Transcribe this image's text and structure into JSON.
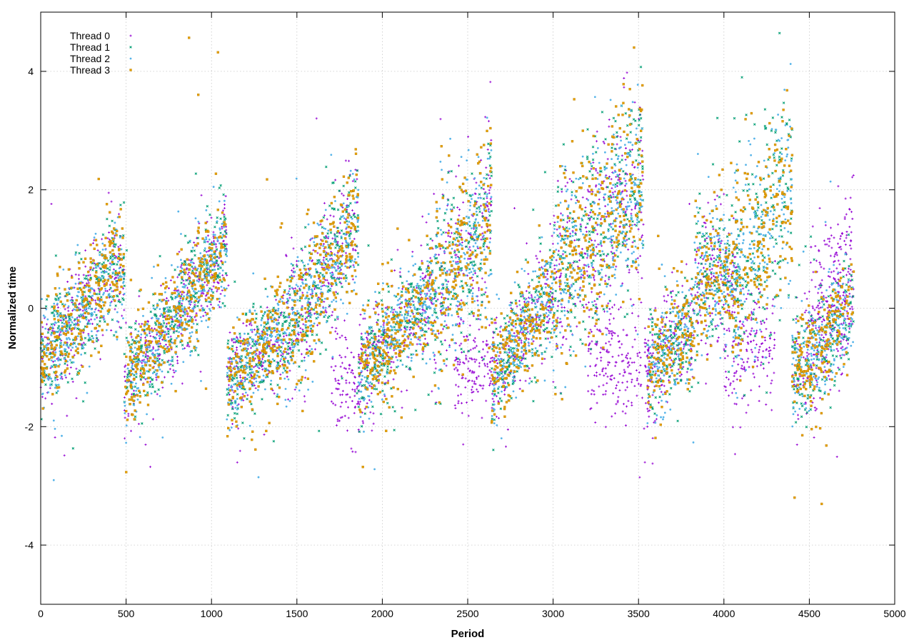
{
  "chart_data": {
    "type": "scatter",
    "title": "",
    "xlabel": "Period",
    "ylabel": "Normalized time",
    "xlim": [
      0,
      5000
    ],
    "ylim": [
      -5,
      5
    ],
    "xticks": [
      0,
      500,
      1000,
      1500,
      2000,
      2500,
      3000,
      3500,
      4000,
      4500,
      5000
    ],
    "yticks": [
      -4,
      -2,
      0,
      2,
      4
    ],
    "grid": true,
    "legend_position": "top-left",
    "series": [
      {
        "name": "Thread 0",
        "color": "#9400d3",
        "marker": "plus"
      },
      {
        "name": "Thread 1",
        "color": "#009e73",
        "marker": "cross"
      },
      {
        "name": "Thread 2",
        "color": "#56b4e9",
        "marker": "star"
      },
      {
        "name": "Thread 3",
        "color": "#e69f00",
        "marker": "square"
      }
    ],
    "period_max": 4760,
    "segments": [
      {
        "x": [
          0,
          490
        ],
        "y": [
          -0.9,
          0.8
        ],
        "spread": 0.45,
        "threads": [
          0,
          1,
          2,
          3
        ]
      },
      {
        "x": [
          490,
          1090
        ],
        "y": [
          -1.3,
          1.1
        ],
        "spread": 0.45,
        "threads": [
          0,
          1,
          2,
          3
        ]
      },
      {
        "x": [
          1090,
          1380
        ],
        "y": [
          -1.2,
          -0.5
        ],
        "spread": 0.4,
        "threads": [
          0,
          1,
          2,
          3
        ]
      },
      {
        "x": [
          1380,
          1860
        ],
        "y": [
          -0.7,
          1.5
        ],
        "spread": 0.55,
        "threads": [
          0,
          1,
          2,
          3
        ]
      },
      {
        "x": [
          1700,
          1880
        ],
        "y": [
          -1.2,
          -1.2
        ],
        "spread": 0.4,
        "threads": [
          0
        ]
      },
      {
        "x": [
          1860,
          2300
        ],
        "y": [
          -1.1,
          0.3
        ],
        "spread": 0.45,
        "threads": [
          0,
          1,
          2,
          3
        ]
      },
      {
        "x": [
          2300,
          2640
        ],
        "y": [
          0.2,
          1.5
        ],
        "spread": 0.75,
        "threads": [
          0,
          1,
          2,
          3
        ]
      },
      {
        "x": [
          2420,
          2660
        ],
        "y": [
          -1.0,
          -1.0
        ],
        "spread": 0.35,
        "threads": [
          0
        ]
      },
      {
        "x": [
          2640,
          3000
        ],
        "y": [
          -1.2,
          0.3
        ],
        "spread": 0.45,
        "threads": [
          0,
          1,
          2,
          3
        ]
      },
      {
        "x": [
          3000,
          3530
        ],
        "y": [
          0.4,
          2.3
        ],
        "spread": 0.8,
        "threads": [
          0,
          1,
          2,
          3
        ]
      },
      {
        "x": [
          3200,
          3600
        ],
        "y": [
          -0.9,
          -0.9
        ],
        "spread": 0.5,
        "threads": [
          0
        ]
      },
      {
        "x": [
          3550,
          3830
        ],
        "y": [
          -1.0,
          -0.3
        ],
        "spread": 0.45,
        "threads": [
          0,
          1,
          2,
          3
        ]
      },
      {
        "x": [
          3830,
          4080
        ],
        "y": [
          0.5,
          0.6
        ],
        "spread": 0.6,
        "threads": [
          0,
          1,
          2,
          3
        ]
      },
      {
        "x": [
          4060,
          4400
        ],
        "y": [
          0.4,
          2.2
        ],
        "spread": 0.9,
        "threads": [
          1,
          2,
          3
        ]
      },
      {
        "x": [
          4000,
          4300
        ],
        "y": [
          -0.9,
          -0.5
        ],
        "spread": 0.5,
        "threads": [
          0
        ]
      },
      {
        "x": [
          4400,
          4760
        ],
        "y": [
          -1.2,
          0.1
        ],
        "spread": 0.45,
        "threads": [
          0,
          1,
          2,
          3
        ]
      },
      {
        "x": [
          4500,
          4760
        ],
        "y": [
          0.2,
          1.2
        ],
        "spread": 0.5,
        "threads": [
          0
        ]
      }
    ]
  }
}
